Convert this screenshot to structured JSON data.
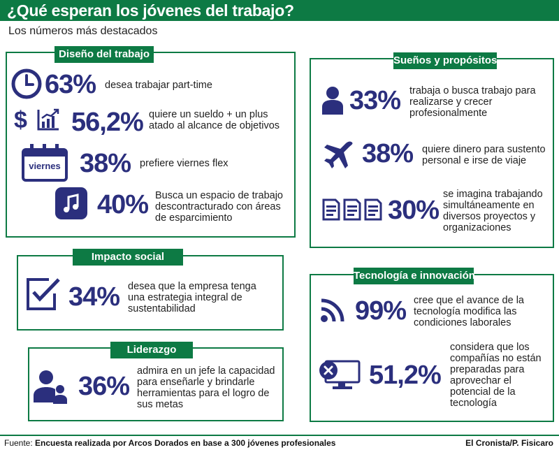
{
  "header": {
    "title": "¿Qué esperan los jóvenes del trabajo?",
    "subtitle": "Los números más destacados"
  },
  "sections": {
    "diseno": {
      "title": "Diseño del trabajo",
      "items": [
        {
          "value": "63%",
          "text": "desea trabajar part-time",
          "icon": "clock-icon"
        },
        {
          "value": "56,2%",
          "text": "quiere un sueldo + un plus atado al alcance de objetivos",
          "icon": "money-chart-icon"
        },
        {
          "value": "38%",
          "text": "prefiere viernes flex",
          "icon": "calendar-icon",
          "icon_label": "viernes"
        },
        {
          "value": "40%",
          "text": "Busca un espacio de trabajo descontracturado con áreas de esparcimiento",
          "icon": "music-icon"
        }
      ]
    },
    "suenos": {
      "title": "Sueños y propósitos",
      "items": [
        {
          "value": "33%",
          "text": "trabaja o busca trabajo para realizarse y crecer profesionalmente",
          "icon": "person-icon"
        },
        {
          "value": "38%",
          "text": "quiere dinero para sustento personal e irse de viaje",
          "icon": "airplane-icon"
        },
        {
          "value": "30%",
          "text": "se imagina trabajando simultáneamente en diversos proyectos y organizaciones",
          "icon": "documents-icon"
        }
      ]
    },
    "impacto": {
      "title": "Impacto social",
      "items": [
        {
          "value": "34%",
          "text": "desea que la empresa tenga una estrategia integral de sustentabilidad",
          "icon": "checkbox-icon"
        }
      ]
    },
    "liderazgo": {
      "title": "Liderazgo",
      "items": [
        {
          "value": "36%",
          "text": "admira en un jefe la capacidad para enseñarle y brindarle herramientas para el logro de sus metas",
          "icon": "people-icon"
        }
      ]
    },
    "tecnologia": {
      "title": "Tecnología e innovación",
      "items": [
        {
          "value": "99%",
          "text": "cree que el avance de la tecnología modifica las condiciones laborales",
          "icon": "rss-icon"
        },
        {
          "value": "51,2%",
          "text": "considera que los compañías no están preparadas para aprovechar el potencial de la tecnología",
          "icon": "monitor-x-icon"
        }
      ]
    }
  },
  "footer": {
    "label": "Fuente:",
    "source": "Encuesta realizada por Arcos Dorados en base a 300 jóvenes profesionales",
    "credit": "El Cronista/P. Fisicaro"
  },
  "colors": {
    "green": "#0d7a44",
    "navy": "#2b2f7d"
  }
}
